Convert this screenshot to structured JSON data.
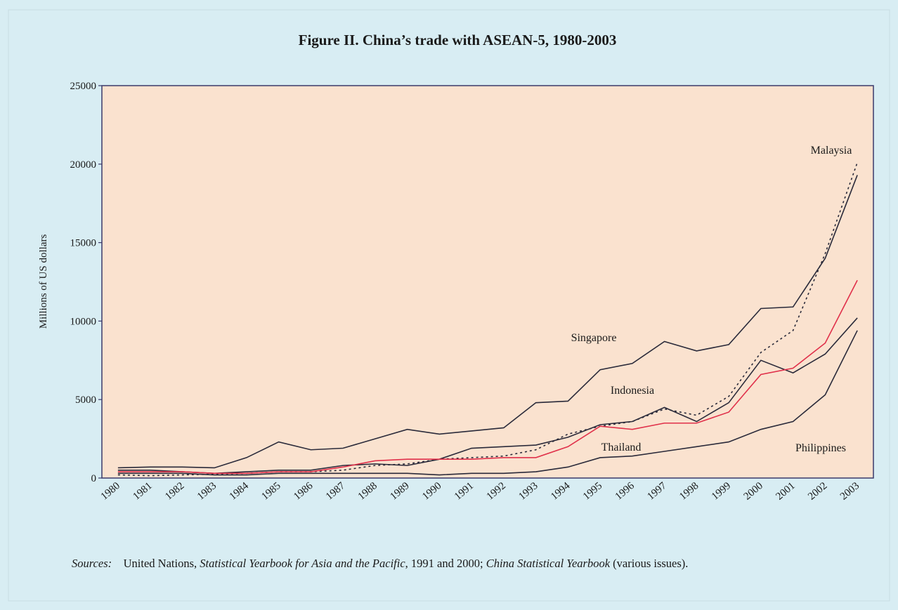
{
  "chart_data": {
    "type": "line",
    "title": "Figure II.  China’s trade with ASEAN-5, 1980-2003",
    "y_label": "Millions of US dollars",
    "categories": [
      "1980",
      "1981",
      "1982",
      "1983",
      "1984",
      "1985",
      "1986",
      "1987",
      "1988",
      "1989",
      "1990",
      "1991",
      "1992",
      "1993",
      "1994",
      "1995",
      "1996",
      "1997",
      "1998",
      "1999",
      "2000",
      "2001",
      "2002",
      "2003"
    ],
    "series": [
      {
        "name": "Singapore",
        "color": "#2a2a3a",
        "line_style": "solid",
        "values": [
          650,
          700,
          700,
          650,
          1300,
          2300,
          1800,
          1900,
          2500,
          3100,
          2800,
          3000,
          3200,
          4800,
          4900,
          6900,
          7300,
          8700,
          8100,
          8500,
          10800,
          10900,
          14000,
          19300
        ]
      },
      {
        "name": "Malaysia",
        "color": "#2a2a3a",
        "line_style": "dotted",
        "values": [
          200,
          150,
          200,
          250,
          300,
          400,
          400,
          500,
          800,
          900,
          1200,
          1300,
          1400,
          1800,
          2800,
          3300,
          3600,
          4400,
          4000,
          5200,
          8000,
          9400,
          14300,
          20100
        ]
      },
      {
        "name": "Indonesia",
        "color": "#2a2a3a",
        "line_style": "solid",
        "values": [
          500,
          500,
          400,
          300,
          400,
          500,
          500,
          800,
          900,
          800,
          1200,
          1900,
          2000,
          2100,
          2600,
          3400,
          3600,
          4500,
          3600,
          4800,
          7500,
          6700,
          7900,
          10200
        ]
      },
      {
        "name": "Thailand",
        "color": "#e0304a",
        "line_style": "solid",
        "values": [
          400,
          400,
          400,
          300,
          300,
          400,
          400,
          700,
          1100,
          1200,
          1200,
          1200,
          1300,
          1300,
          2000,
          3300,
          3100,
          3500,
          3500,
          4200,
          6600,
          7000,
          8600,
          12600
        ]
      },
      {
        "name": "Philippines",
        "color": "#2a2a3a",
        "line_style": "solid",
        "values": [
          300,
          300,
          300,
          200,
          200,
          300,
          300,
          300,
          300,
          300,
          200,
          300,
          300,
          400,
          700,
          1300,
          1400,
          1700,
          2000,
          2300,
          3100,
          3600,
          5300,
          9400
        ]
      }
    ],
    "ylim": [
      0,
      25000
    ],
    "yticks": [
      0,
      5000,
      10000,
      15000,
      20000,
      25000
    ],
    "grid": false,
    "source_label": "Sources:",
    "source": [
      "United Nations, ",
      "Statistical Yearbook for Asia and the Pacific",
      ", 1991 and 2000; ",
      "China Statistical Yearbook",
      " (various issues)."
    ]
  }
}
